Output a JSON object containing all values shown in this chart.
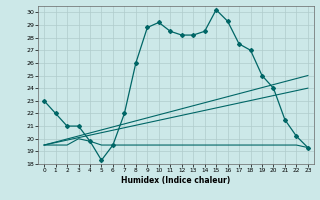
{
  "title": "",
  "xlabel": "Humidex (Indice chaleur)",
  "bg_color": "#cce8e8",
  "grid_color": "#b0cccc",
  "line_color": "#006666",
  "xlim": [
    -0.5,
    23.5
  ],
  "ylim": [
    18,
    30.5
  ],
  "xticks": [
    0,
    1,
    2,
    3,
    4,
    5,
    6,
    7,
    8,
    9,
    10,
    11,
    12,
    13,
    14,
    15,
    16,
    17,
    18,
    19,
    20,
    21,
    22,
    23
  ],
  "yticks": [
    18,
    19,
    20,
    21,
    22,
    23,
    24,
    25,
    26,
    27,
    28,
    29,
    30
  ],
  "line1_x": [
    0,
    1,
    2,
    3,
    4,
    5,
    6,
    7,
    8,
    9,
    10,
    11,
    12,
    13,
    14,
    15,
    16,
    17,
    18,
    19,
    20,
    21,
    22,
    23
  ],
  "line1_y": [
    23,
    22,
    21,
    21,
    19.8,
    18.3,
    19.5,
    22,
    26,
    28.8,
    29.2,
    28.5,
    28.2,
    28.2,
    28.5,
    30.2,
    29.3,
    27.5,
    27,
    25,
    24,
    21.5,
    20.2,
    19.3
  ],
  "line2_x": [
    0,
    1,
    2,
    3,
    4,
    5,
    6,
    7,
    8,
    9,
    10,
    11,
    12,
    13,
    14,
    15,
    16,
    17,
    18,
    19,
    20,
    21,
    22,
    23
  ],
  "line2_y": [
    19.5,
    19.5,
    19.5,
    20.0,
    19.8,
    19.5,
    19.5,
    19.5,
    19.5,
    19.5,
    19.5,
    19.5,
    19.5,
    19.5,
    19.5,
    19.5,
    19.5,
    19.5,
    19.5,
    19.5,
    19.5,
    19.5,
    19.5,
    19.3
  ],
  "line3_x": [
    0,
    23
  ],
  "line3_y": [
    19.5,
    25.0
  ],
  "line4_x": [
    0,
    23
  ],
  "line4_y": [
    19.5,
    24.0
  ]
}
